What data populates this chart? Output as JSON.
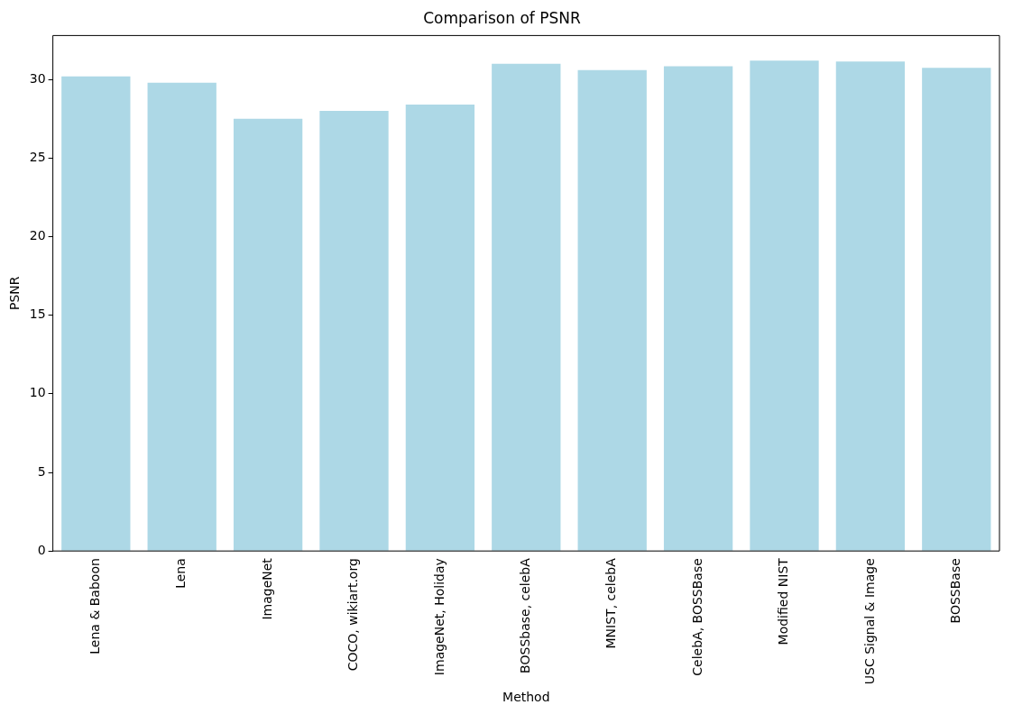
{
  "chart_data": {
    "type": "bar",
    "title": "Comparison of PSNR",
    "xlabel": "Method",
    "ylabel": "PSNR",
    "categories": [
      "Lena & Baboon",
      "Lena",
      "ImageNet",
      "COCO, wikiart.org",
      "ImageNet, Holiday",
      "BOSSbase, celebA",
      "MNIST, celebA",
      "CelebA, BOSSBase",
      "Modified NIST",
      "USC Signal & Image",
      "BOSSBase"
    ],
    "values": [
      30.2,
      29.8,
      27.5,
      28.0,
      28.4,
      31.0,
      30.6,
      30.85,
      31.2,
      31.15,
      30.75
    ],
    "color": "#add8e6",
    "ylim": [
      0,
      32.8
    ],
    "yticks": [
      0,
      5,
      10,
      15,
      20,
      25,
      30
    ],
    "grid": false,
    "legend": false
  }
}
